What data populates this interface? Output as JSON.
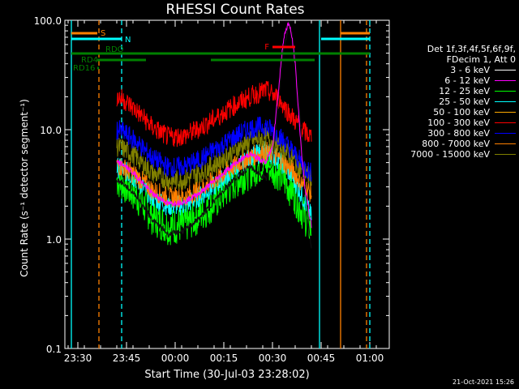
{
  "chart_data": {
    "type": "line",
    "title": "RHESSI Count Rates",
    "xlabel": "Start Time (30-Jul-03 23:28:02)",
    "ylabel": "Count Rate (s⁻¹ detector segment⁻¹)",
    "yscale": "log",
    "ylim": [
      0.1,
      100
    ],
    "xlim_minutes": [
      -2,
      98
    ],
    "x_ticks": [
      "23:30",
      "23:45",
      "00:00",
      "00:15",
      "00:30",
      "00:45",
      "01:00"
    ],
    "y_ticks": [
      "0.1",
      "1.0",
      "10.0",
      "100.0"
    ],
    "legend_header": [
      "Det 1f,3f,4f,5f,6f,9f,",
      "FDecim 1, Att 0"
    ],
    "series": [
      {
        "name": "3 - 6 keV",
        "color": "#000000",
        "x": [
          14,
          16,
          20,
          25,
          30,
          35,
          40,
          45,
          50,
          55,
          60,
          62,
          64,
          65,
          66,
          67,
          68,
          69,
          70,
          71,
          72,
          73,
          74
        ],
        "y": [
          3.5,
          3.2,
          2.5,
          1.5,
          1.1,
          1.2,
          1.6,
          2.4,
          3.5,
          4.6,
          3.5,
          5,
          20,
          45,
          65,
          90,
          75,
          45,
          20,
          8,
          3,
          1.5,
          0.8
        ]
      },
      {
        "name": "6 - 12 keV",
        "color": "#ff00ff",
        "x": [
          14,
          16,
          20,
          25,
          30,
          35,
          40,
          45,
          50,
          55,
          60,
          62,
          64,
          65,
          66,
          67,
          68,
          69,
          70,
          71,
          72,
          73,
          74
        ],
        "y": [
          5,
          4.8,
          3.8,
          2.6,
          2.1,
          2.2,
          2.7,
          3.6,
          4.8,
          6,
          5,
          7,
          25,
          55,
          80,
          95,
          70,
          40,
          15,
          6,
          3,
          2,
          1.3
        ]
      },
      {
        "name": "12 - 25 keV",
        "color": "#00ff00",
        "x": [
          14,
          16,
          20,
          25,
          30,
          35,
          40,
          45,
          50,
          55,
          60,
          64,
          68,
          72,
          74
        ],
        "y": [
          3.5,
          3.2,
          2.5,
          1.6,
          1.3,
          1.35,
          1.7,
          2.3,
          3.3,
          4.2,
          5,
          4,
          2.8,
          1.6,
          1.2
        ]
      },
      {
        "name": "25 - 50 keV",
        "color": "#00ffff",
        "x": [
          14,
          16,
          20,
          25,
          30,
          35,
          40,
          45,
          50,
          55,
          60,
          64,
          68,
          72,
          74
        ],
        "y": [
          4.5,
          4.3,
          3.5,
          2.4,
          2,
          2.05,
          2.5,
          3.2,
          4.3,
          5.5,
          6.5,
          5.3,
          3.8,
          2.2,
          1.6
        ]
      },
      {
        "name": "50 - 100 keV",
        "color": "#ffaa00",
        "x": [
          14,
          16,
          20,
          25,
          30,
          35,
          40,
          45,
          50,
          55,
          60,
          64,
          68,
          72,
          74
        ],
        "y": [
          6,
          5.8,
          4.8,
          3.5,
          2.9,
          3,
          3.5,
          4.3,
          5.5,
          6.8,
          7.6,
          6.5,
          5,
          3.6,
          3
        ]
      },
      {
        "name": "100 - 300 keV",
        "color": "#ff0000",
        "x": [
          14,
          16,
          20,
          25,
          30,
          35,
          40,
          45,
          50,
          55,
          60,
          64,
          68,
          72,
          74
        ],
        "y": [
          20,
          19,
          15,
          10.5,
          8.5,
          8.8,
          10.5,
          13,
          16.5,
          20,
          23,
          19,
          13,
          9.5,
          8.5
        ]
      },
      {
        "name": "300 - 800 keV",
        "color": "#0000ff",
        "x": [
          14,
          16,
          20,
          25,
          30,
          35,
          40,
          45,
          50,
          55,
          60,
          64,
          68,
          72,
          74
        ],
        "y": [
          10,
          9.5,
          7.8,
          5.5,
          4.5,
          4.6,
          5.4,
          6.8,
          8.5,
          10.3,
          10.8,
          8.8,
          6.5,
          4.5,
          4
        ]
      },
      {
        "name": "800 - 7000 keV",
        "color": "#ff8000",
        "x": [
          14,
          16,
          20,
          25,
          30,
          35,
          40,
          45,
          50,
          55,
          60,
          64,
          68,
          72,
          74
        ],
        "y": [
          4.8,
          4.5,
          3.8,
          2.8,
          2.4,
          2.45,
          2.9,
          3.6,
          4.6,
          5.6,
          6.4,
          5.5,
          4.3,
          3,
          2.6
        ]
      },
      {
        "name": "7000 - 15000 keV",
        "color": "#808000",
        "x": [
          14,
          16,
          20,
          25,
          30,
          35,
          40,
          45,
          50,
          55,
          60,
          64,
          68,
          72,
          74
        ],
        "y": [
          7,
          6.7,
          5.6,
          4,
          3.4,
          3.5,
          4.1,
          5,
          6.4,
          7.8,
          8.5,
          7.3,
          5.5,
          4,
          3.5
        ]
      }
    ],
    "annotations": {
      "vertical_lines": [
        {
          "x": 0,
          "color": "#00ffff",
          "style": "solid"
        },
        {
          "x": 8.5,
          "color": "#ff8000",
          "style": "dashed"
        },
        {
          "x": 15.5,
          "color": "#00ffff",
          "style": "dashed"
        },
        {
          "x": 76.5,
          "color": "#00ffff",
          "style": "solid"
        },
        {
          "x": 83,
          "color": "#ff8000",
          "style": "solid"
        },
        {
          "x": 91,
          "color": "#ff8000",
          "style": "dashed"
        },
        {
          "x": 92,
          "color": "#00ffff",
          "style": "dashed"
        }
      ],
      "flag_bars": [
        {
          "label": "S",
          "color": "#ff8000",
          "x0": 0,
          "x1": 8,
          "y": 41,
          "segments": [
            [
              0,
              8
            ],
            [
              83,
              92
            ]
          ]
        },
        {
          "label": "N",
          "color": "#00ffff",
          "x0": 15,
          "x1": 15.5,
          "y": 48,
          "segments": [
            [
              0,
              15.5
            ],
            [
              77,
              92
            ]
          ]
        },
        {
          "label": "F",
          "color": "#ff0000",
          "y": 58,
          "segments": [
            [
              62,
              69
            ]
          ]
        },
        {
          "label": "RDO",
          "color": "#008000",
          "y": 66,
          "segments": [
            [
              0,
              20.5
            ],
            [
              20.5,
              42
            ],
            [
              42,
              92
            ]
          ]
        },
        {
          "label": "RD4",
          "color": "#008000",
          "y": 74,
          "segments": [
            [
              8,
              10
            ],
            [
              10,
              23
            ],
            [
              43,
              75
            ]
          ]
        },
        {
          "label": "RD16",
          "color": "#008000",
          "y": 84,
          "segments": [
            [
              8,
              8.5
            ]
          ]
        }
      ]
    },
    "footer_stamp": "21-Oct-2021 15:26"
  }
}
